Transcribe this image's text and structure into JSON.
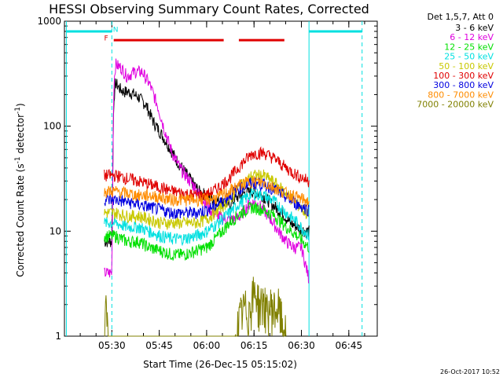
{
  "chart_data": {
    "type": "line",
    "title": "HESSI Observing Summary Count Rates, Corrected",
    "xlabel": "Start Time (26-Dec-15 05:15:02)",
    "ylabel": "Corrected Count Rate (s",
    "ylabel_sup1": "-1",
    "ylabel_mid": " detector",
    "ylabel_sup2": "-1",
    "ylabel_end": ")",
    "y_scale": "log",
    "ylim": [
      1,
      1000
    ],
    "xlim": [
      5.25,
      6.9
    ],
    "x_ticks": [
      {
        "x": 5.5,
        "label": "05:30"
      },
      {
        "x": 5.75,
        "label": "05:45"
      },
      {
        "x": 6.0,
        "label": "06:00"
      },
      {
        "x": 6.25,
        "label": "06:15"
      },
      {
        "x": 6.5,
        "label": "06:30"
      },
      {
        "x": 6.75,
        "label": "06:45"
      }
    ],
    "y_ticks": [
      {
        "y": 1,
        "label": "1"
      },
      {
        "y": 10,
        "label": "10"
      },
      {
        "y": 100,
        "label": "100"
      },
      {
        "y": 1000,
        "label": "1000"
      }
    ],
    "legend_title": "Det 1,5,7, Att 0",
    "legend_placement": "right",
    "series": [
      {
        "name": "3 - 6 keV",
        "color": "#000000",
        "x": [
          5.46,
          5.5,
          5.51,
          5.52,
          5.54,
          5.56,
          5.6,
          5.64,
          5.68,
          5.72,
          5.76,
          5.8,
          5.84,
          5.88,
          5.92,
          5.96,
          6.0,
          6.04,
          6.08,
          6.12,
          6.16,
          6.2,
          6.24,
          6.28,
          6.32,
          6.36,
          6.4,
          6.44,
          6.48,
          6.52,
          6.54
        ],
        "y": [
          8,
          8,
          180,
          260,
          230,
          215,
          210,
          190,
          160,
          110,
          85,
          65,
          48,
          38,
          30,
          24,
          22,
          20,
          19,
          18,
          21,
          23,
          24,
          23,
          20,
          17,
          15,
          12,
          11,
          10,
          10
        ]
      },
      {
        "name": "6 - 12 keV",
        "color": "#e000e0",
        "x": [
          5.46,
          5.5,
          5.51,
          5.52,
          5.55,
          5.58,
          5.62,
          5.66,
          5.7,
          5.74,
          5.78,
          5.82,
          5.86,
          5.9,
          5.94,
          5.98,
          6.02,
          6.06,
          6.1,
          6.14,
          6.18,
          6.22,
          6.26,
          6.3,
          6.34,
          6.38,
          6.42,
          6.46,
          6.5,
          6.54
        ],
        "y": [
          4,
          4,
          250,
          390,
          360,
          300,
          330,
          330,
          250,
          160,
          90,
          55,
          40,
          32,
          26,
          20,
          16,
          14,
          13,
          13,
          14,
          18,
          19,
          16,
          13,
          10,
          8,
          7,
          7,
          3.5
        ]
      },
      {
        "name": "12 - 25 keV",
        "color": "#00e000",
        "x": [
          5.46,
          5.52,
          5.58,
          5.64,
          5.7,
          5.76,
          5.82,
          5.88,
          5.94,
          6.0,
          6.06,
          6.12,
          6.18,
          6.24,
          6.3,
          6.36,
          6.42,
          6.48,
          6.54
        ],
        "y": [
          9,
          9,
          8,
          8,
          7,
          6.5,
          6,
          6,
          6.5,
          7,
          9,
          12,
          15,
          17,
          16,
          14,
          11,
          9,
          7
        ]
      },
      {
        "name": "25 - 50 keV",
        "color": "#00e0e0",
        "x": [
          5.46,
          5.52,
          5.58,
          5.64,
          5.7,
          5.76,
          5.82,
          5.88,
          5.94,
          6.0,
          6.06,
          6.12,
          6.18,
          6.24,
          6.3,
          6.36,
          6.42,
          6.48,
          6.54
        ],
        "y": [
          12,
          12,
          11,
          11,
          10,
          9,
          8.5,
          8.5,
          9,
          10,
          12,
          15,
          19,
          23,
          22,
          19,
          15,
          12,
          9
        ]
      },
      {
        "name": "50 - 100 keV",
        "color": "#c8c800",
        "x": [
          5.46,
          5.52,
          5.58,
          5.64,
          5.7,
          5.76,
          5.82,
          5.88,
          5.94,
          6.0,
          6.06,
          6.12,
          6.18,
          6.24,
          6.3,
          6.36,
          6.42,
          6.48,
          6.54
        ],
        "y": [
          15,
          15,
          14,
          14,
          13,
          12,
          12,
          12,
          12,
          13,
          16,
          20,
          27,
          34,
          34,
          29,
          23,
          18,
          14
        ]
      },
      {
        "name": "100 - 300 keV",
        "color": "#e00000",
        "x": [
          5.46,
          5.52,
          5.58,
          5.64,
          5.7,
          5.76,
          5.82,
          5.88,
          5.94,
          6.0,
          6.06,
          6.12,
          6.18,
          6.24,
          6.3,
          6.36,
          6.42,
          6.48,
          6.54
        ],
        "y": [
          34,
          34,
          32,
          30,
          28,
          26,
          24,
          23,
          22,
          22,
          26,
          32,
          43,
          55,
          56,
          49,
          40,
          34,
          30
        ]
      },
      {
        "name": "300 - 800 keV",
        "color": "#0000e0",
        "x": [
          5.46,
          5.52,
          5.58,
          5.64,
          5.7,
          5.76,
          5.82,
          5.88,
          5.94,
          6.0,
          6.06,
          6.12,
          6.18,
          6.24,
          6.3,
          6.36,
          6.42,
          6.48,
          6.54
        ],
        "y": [
          20,
          20,
          19,
          18,
          17,
          16,
          15,
          15,
          15,
          16,
          18,
          22,
          26,
          29,
          28,
          25,
          21,
          18,
          16
        ]
      },
      {
        "name": "800 - 7000 keV",
        "color": "#ff8c00",
        "x": [
          5.46,
          5.52,
          5.58,
          5.64,
          5.7,
          5.76,
          5.82,
          5.88,
          5.94,
          6.0,
          6.06,
          6.12,
          6.18,
          6.24,
          6.3,
          6.36,
          6.42,
          6.48,
          6.54
        ],
        "y": [
          24,
          24,
          23,
          22,
          22,
          21,
          20,
          20,
          20,
          20,
          21,
          24,
          28,
          30,
          29,
          26,
          23,
          21,
          19
        ]
      },
      {
        "name": "7000 - 20000 keV",
        "color": "#808000",
        "x": [
          5.46,
          5.47,
          5.48,
          5.5,
          5.52,
          5.55,
          5.6,
          5.65,
          5.7,
          5.75,
          5.8,
          5.85,
          5.9,
          5.95,
          6.0,
          6.05,
          6.1,
          6.15,
          6.18,
          6.2,
          6.22,
          6.24,
          6.26,
          6.28,
          6.3,
          6.32,
          6.34,
          6.36,
          6.38,
          6.4,
          6.42
        ],
        "y": [
          1,
          1.8,
          1,
          1,
          1,
          1,
          1,
          1,
          1,
          1,
          1,
          1,
          1,
          1,
          1,
          1,
          1,
          1,
          1.6,
          1.9,
          1.7,
          2.4,
          2.7,
          1.9,
          2.3,
          1.6,
          2.0,
          1.8,
          1.9,
          1.3,
          1
        ]
      }
    ],
    "attenuator_bands": [
      {
        "label": "",
        "color": "#00e0e0",
        "x0": 5.26,
        "x1": 5.5,
        "y": 800
      },
      {
        "label": "",
        "color": "#00e0e0",
        "x0": 6.54,
        "x1": 6.82,
        "y": 800
      }
    ],
    "night_flag_bars": [
      {
        "color": "#e00000",
        "x0": 5.51,
        "x1": 6.09,
        "y": 660
      },
      {
        "color": "#e00000",
        "x0": 6.17,
        "x1": 6.41,
        "y": 660
      }
    ],
    "vertical_markers": [
      {
        "x": 5.26,
        "color": "#00e0e0",
        "style": "solid"
      },
      {
        "x": 5.5,
        "color": "#00e0e0",
        "style": "dashed"
      },
      {
        "x": 6.54,
        "color": "#00e0e0",
        "style": "solid"
      },
      {
        "x": 6.82,
        "color": "#00e0e0",
        "style": "dashed"
      }
    ],
    "flag_labels": [
      {
        "text": "F",
        "color": "#e00000",
        "x": 5.47,
        "y": 700
      },
      {
        "text": "N",
        "color": "#00e0e0",
        "x": 5.52,
        "y": 850
      }
    ],
    "timestamp": "26-Oct-2017 10:52"
  }
}
